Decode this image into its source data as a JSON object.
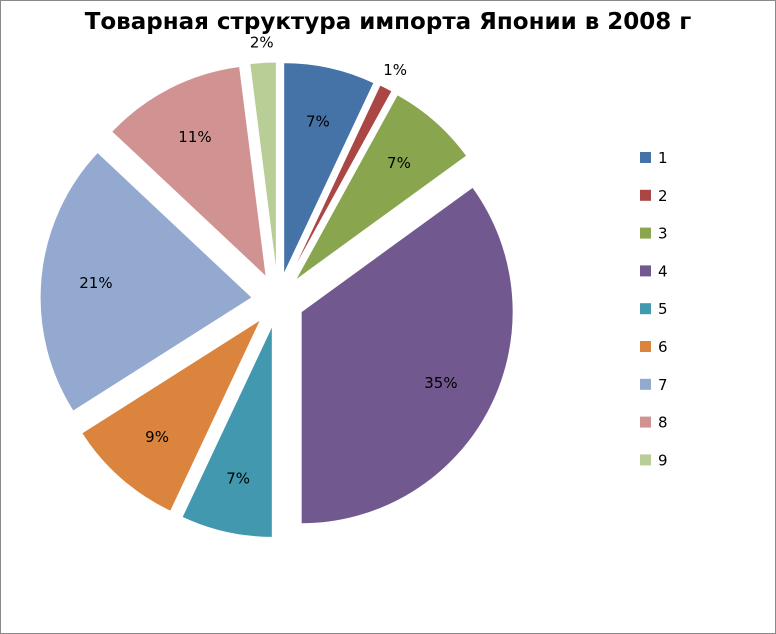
{
  "chart_data": {
    "type": "pie",
    "title": "Товарная структура импорта Японии в 2008 г",
    "exploded": true,
    "legend_position": "right",
    "slices": [
      {
        "name": "1",
        "value": 7,
        "label": "7%",
        "color": "#4572A7"
      },
      {
        "name": "2",
        "value": 1,
        "label": "1%",
        "color": "#AA4643"
      },
      {
        "name": "3",
        "value": 7,
        "label": "7%",
        "color": "#89A54E"
      },
      {
        "name": "4",
        "value": 35,
        "label": "35%",
        "color": "#71588F"
      },
      {
        "name": "5",
        "value": 7,
        "label": "7%",
        "color": "#4198AF"
      },
      {
        "name": "6",
        "value": 9,
        "label": "9%",
        "color": "#DB843D"
      },
      {
        "name": "7",
        "value": 21,
        "label": "21%",
        "color": "#93A9CF"
      },
      {
        "name": "8",
        "value": 11,
        "label": "11%",
        "color": "#D19392"
      },
      {
        "name": "9",
        "value": 2,
        "label": "2%",
        "color": "#B9CD96"
      }
    ]
  }
}
